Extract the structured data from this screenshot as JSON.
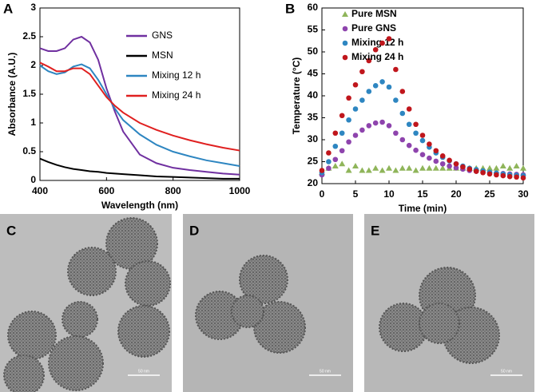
{
  "chart_data": [
    {
      "type": "line",
      "panel": "A",
      "xlabel": "Wavelength (nm)",
      "ylabel": "Absorbance (A.U.)",
      "x": [
        400,
        425,
        450,
        475,
        500,
        525,
        550,
        575,
        600,
        625,
        650,
        700,
        750,
        800,
        850,
        900,
        950,
        1000
      ],
      "xlim": [
        400,
        1000
      ],
      "xticks": [
        400,
        600,
        800,
        1000
      ],
      "ylim": [
        0,
        3
      ],
      "yticks": [
        0,
        0.5,
        1,
        1.5,
        2,
        2.5,
        3
      ],
      "legend": "upper right",
      "series": [
        {
          "name": "GNS",
          "color": "#7030a0",
          "values": [
            2.3,
            2.25,
            2.25,
            2.3,
            2.45,
            2.5,
            2.4,
            2.1,
            1.6,
            1.2,
            0.85,
            0.45,
            0.3,
            0.22,
            0.18,
            0.15,
            0.12,
            0.1
          ]
        },
        {
          "name": "MSN",
          "color": "#000000",
          "values": [
            0.38,
            0.32,
            0.27,
            0.23,
            0.2,
            0.18,
            0.16,
            0.15,
            0.13,
            0.12,
            0.11,
            0.09,
            0.07,
            0.06,
            0.05,
            0.04,
            0.03,
            0.03
          ]
        },
        {
          "name": "Mixing 12 h",
          "color": "#2e86c1",
          "values": [
            2.0,
            1.9,
            1.85,
            1.88,
            1.98,
            2.02,
            1.95,
            1.75,
            1.5,
            1.25,
            1.05,
            0.8,
            0.62,
            0.5,
            0.42,
            0.35,
            0.3,
            0.25
          ]
        },
        {
          "name": "Mixing 24 h",
          "color": "#e02020",
          "values": [
            2.05,
            1.98,
            1.9,
            1.9,
            1.95,
            1.95,
            1.85,
            1.65,
            1.45,
            1.3,
            1.18,
            1.0,
            0.88,
            0.78,
            0.7,
            0.63,
            0.57,
            0.52
          ]
        }
      ]
    },
    {
      "type": "scatter",
      "panel": "B",
      "xlabel": "Time (min)",
      "ylabel": "Temperature (°C)",
      "x": [
        0,
        1,
        2,
        3,
        4,
        5,
        6,
        7,
        8,
        9,
        10,
        11,
        12,
        13,
        14,
        15,
        16,
        17,
        18,
        19,
        20,
        21,
        22,
        23,
        24,
        25,
        26,
        27,
        28,
        29,
        30
      ],
      "xlim": [
        0,
        30
      ],
      "xticks": [
        0,
        5,
        10,
        15,
        20,
        25,
        30
      ],
      "ylim": [
        20,
        60
      ],
      "yticks": [
        20,
        25,
        30,
        35,
        40,
        45,
        50,
        55,
        60
      ],
      "legend": "upper right",
      "series": [
        {
          "name": "Pure MSN",
          "color": "#8fb55a",
          "marker": "triangle",
          "values": [
            22.5,
            23.5,
            24,
            24.5,
            23,
            24,
            23,
            23,
            23.5,
            23,
            23.5,
            23,
            23.5,
            23.5,
            23,
            23.5,
            23.5,
            23.5,
            23.5,
            23.5,
            23.5,
            23.5,
            23.5,
            23.5,
            23.5,
            23.5,
            23.5,
            24,
            23.5,
            24,
            23.5
          ]
        },
        {
          "name": "Pure GNS",
          "color": "#8e44ad",
          "marker": "circle",
          "values": [
            22,
            23.5,
            25.5,
            27.5,
            29.5,
            31,
            32.2,
            33.2,
            33.8,
            34,
            33.2,
            31.5,
            30,
            28.7,
            27.6,
            26.6,
            25.8,
            25.1,
            24.5,
            24,
            23.6,
            23.3,
            23,
            22.8,
            22.6,
            22.5,
            22.4,
            22.3,
            22.2,
            22.1,
            22
          ]
        },
        {
          "name": "Mixing 12 h",
          "color": "#2e86c1",
          "marker": "circle",
          "values": [
            22.5,
            25,
            28.5,
            31.5,
            34.5,
            37,
            39,
            41,
            42.3,
            43.2,
            42,
            39,
            36,
            33.5,
            31.5,
            29.8,
            28.3,
            27,
            26,
            25.2,
            24.5,
            24,
            23.5,
            23.2,
            22.9,
            22.6,
            22.4,
            22.2,
            22,
            21.9,
            21.8
          ]
        },
        {
          "name": "Mixing 24 h",
          "color": "#c0161c",
          "marker": "circle",
          "values": [
            23,
            27,
            31.5,
            35.5,
            39.5,
            42.5,
            45.5,
            48,
            50.5,
            52,
            53,
            46,
            41,
            37,
            33.5,
            31,
            29,
            27.5,
            26.3,
            25.3,
            24.5,
            23.8,
            23.3,
            22.8,
            22.5,
            22.2,
            22,
            21.8,
            21.6,
            21.5,
            21.3
          ]
        }
      ]
    }
  ],
  "images": [
    {
      "label": "C",
      "scale": "50 nm"
    },
    {
      "label": "D",
      "scale": "50 nm"
    },
    {
      "label": "E",
      "scale": "50 nm"
    }
  ]
}
